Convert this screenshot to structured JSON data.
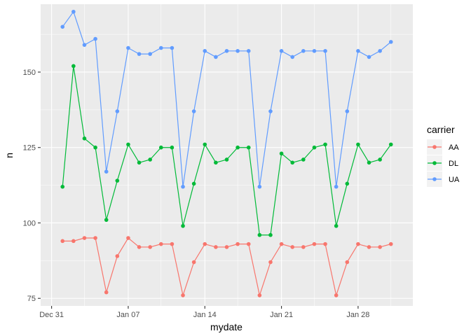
{
  "chart_data": {
    "type": "line",
    "xlabel": "mydate",
    "ylabel": "n",
    "x_ticks": [
      "Dec 31",
      "Jan 07",
      "Jan 14",
      "Jan 21",
      "Jan 28"
    ],
    "y_ticks": [
      75,
      100,
      125,
      150
    ],
    "xlim": [
      "2012-12-30",
      "2013-02-02"
    ],
    "ylim": [
      72.5,
      172.5
    ],
    "grid": true,
    "legend": {
      "title": "carrier",
      "position": "right"
    },
    "x": [
      "2013-01-01",
      "2013-01-02",
      "2013-01-03",
      "2013-01-04",
      "2013-01-05",
      "2013-01-06",
      "2013-01-07",
      "2013-01-08",
      "2013-01-09",
      "2013-01-10",
      "2013-01-11",
      "2013-01-12",
      "2013-01-13",
      "2013-01-14",
      "2013-01-15",
      "2013-01-16",
      "2013-01-17",
      "2013-01-18",
      "2013-01-19",
      "2013-01-20",
      "2013-01-21",
      "2013-01-22",
      "2013-01-23",
      "2013-01-24",
      "2013-01-25",
      "2013-01-26",
      "2013-01-27",
      "2013-01-28",
      "2013-01-29",
      "2013-01-30",
      "2013-01-31"
    ],
    "series": [
      {
        "name": "AA",
        "color": "#F8766D",
        "values": [
          94,
          94,
          95,
          95,
          77,
          89,
          95,
          92,
          92,
          93,
          93,
          76,
          87,
          93,
          92,
          92,
          93,
          93,
          76,
          87,
          93,
          92,
          92,
          93,
          93,
          76,
          87,
          93,
          92,
          92,
          93
        ]
      },
      {
        "name": "DL",
        "color": "#00BA38",
        "values": [
          112,
          152,
          128,
          125,
          101,
          114,
          126,
          120,
          121,
          125,
          125,
          99,
          113,
          126,
          120,
          121,
          125,
          125,
          96,
          96,
          123,
          120,
          121,
          125,
          126,
          99,
          113,
          126,
          120,
          121,
          126
        ]
      },
      {
        "name": "UA",
        "color": "#619CFF",
        "values": [
          165,
          170,
          159,
          161,
          117,
          137,
          158,
          156,
          156,
          158,
          158,
          112,
          137,
          157,
          155,
          157,
          157,
          157,
          112,
          137,
          157,
          155,
          157,
          157,
          157,
          112,
          137,
          157,
          155,
          157,
          160
        ]
      }
    ]
  }
}
